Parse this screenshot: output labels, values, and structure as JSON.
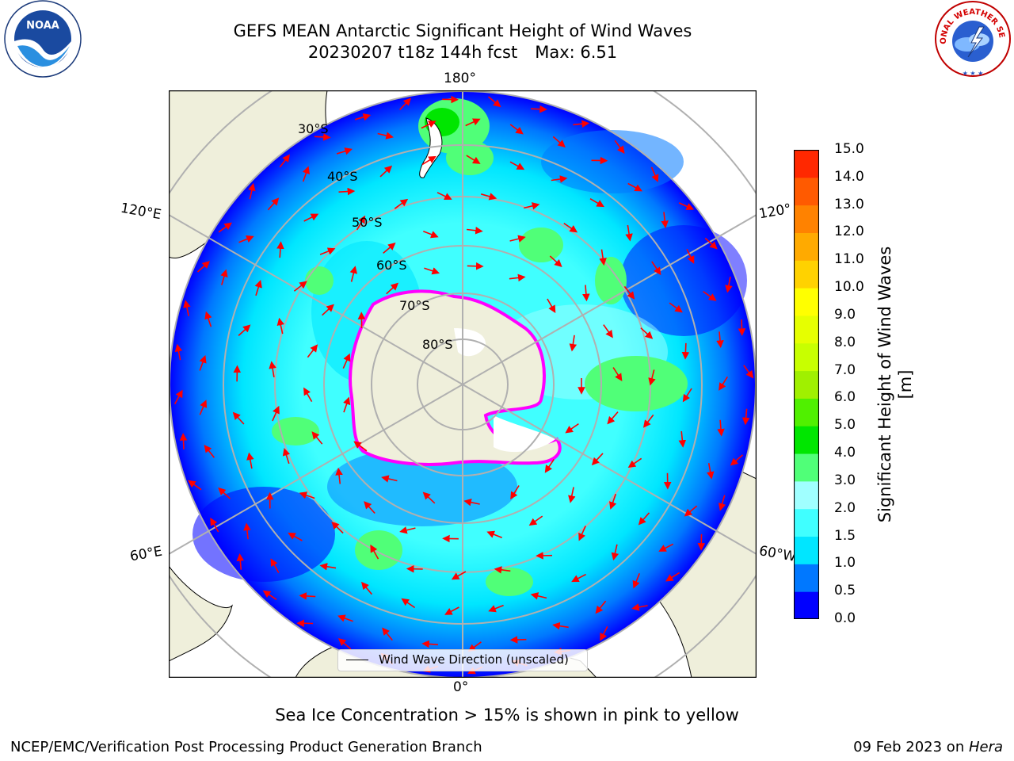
{
  "title": {
    "line1": "GEFS MEAN Antarctic Significant Height of Wind Waves",
    "line2_run": "20230207 t18z 144h fcst",
    "line2_max": "Max: 6.51"
  },
  "logos": {
    "left": "NOAA",
    "right": "NATIONAL WEATHER SERVICE"
  },
  "map": {
    "projection": "south-polar-stereographic",
    "lon_labels": {
      "top": "180°",
      "bottom": "0°",
      "upper_left": "120°E",
      "upper_right": "120°",
      "lower_left": "60°E",
      "lower_right": "60°W"
    },
    "lat_labels": [
      "30°S",
      "40°S",
      "50°S",
      "60°S",
      "70°S",
      "80°S"
    ],
    "legend": "Wind Wave Direction (unscaled)"
  },
  "colorbar": {
    "label": "Significant Height of Wind Waves [m]",
    "ticks": [
      "15.0",
      "14.0",
      "13.0",
      "12.0",
      "11.0",
      "10.0",
      "9.0",
      "8.0",
      "7.0",
      "6.0",
      "5.0",
      "4.0",
      "3.0",
      "2.0",
      "1.5",
      "1.0",
      "0.5",
      "0.0"
    ],
    "colors": [
      "#0000ff",
      "#0078ff",
      "#00e6ff",
      "#40ffff",
      "#a0ffff",
      "#50ff78",
      "#00e600",
      "#50f000",
      "#a0f000",
      "#c8ff00",
      "#e6ff00",
      "#ffff00",
      "#ffd200",
      "#ffaa00",
      "#ff8200",
      "#ff5a00",
      "#ff2800"
    ]
  },
  "caption": "Sea Ice Concentration > 15% is shown in pink to yellow",
  "footer": {
    "left": "NCEP/EMC/Verification Post Processing Product Generation Branch",
    "right_date": "09 Feb 2023 on ",
    "right_machine": "Hera"
  }
}
